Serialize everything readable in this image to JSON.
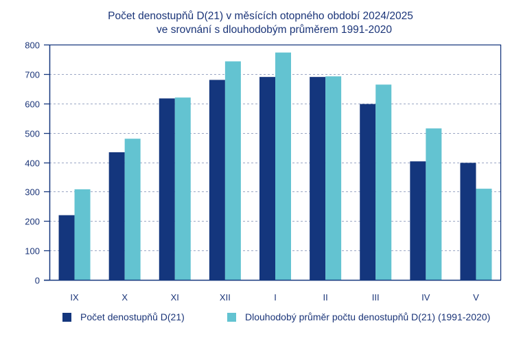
{
  "chart_data": {
    "type": "bar",
    "title": "Počet denostupňů D(21) v měsících otopného období 2024/2025",
    "subtitle": "ve srovnání s dlouhodobým průměrem 1991-2020",
    "xlabel": "",
    "ylabel": "",
    "categories": [
      "IX",
      "X",
      "XI",
      "XII",
      "I",
      "II",
      "III",
      "IV",
      "V"
    ],
    "ylim": [
      0,
      800
    ],
    "yticks": [
      0,
      100,
      200,
      300,
      400,
      500,
      600,
      700,
      800
    ],
    "grid": true,
    "legend_position": "bottom",
    "series": [
      {
        "name": "Počet denostupňů D(21)",
        "color": "#14367d",
        "values": [
          220,
          434,
          617,
          680,
          690,
          690,
          598,
          403,
          398
        ]
      },
      {
        "name": "Dlouhodobý průměr počtu denostupňů D(21) (1991-2020)",
        "color": "#63c3d1",
        "values": [
          308,
          480,
          620,
          743,
          773,
          692,
          664,
          515,
          310
        ]
      }
    ]
  }
}
